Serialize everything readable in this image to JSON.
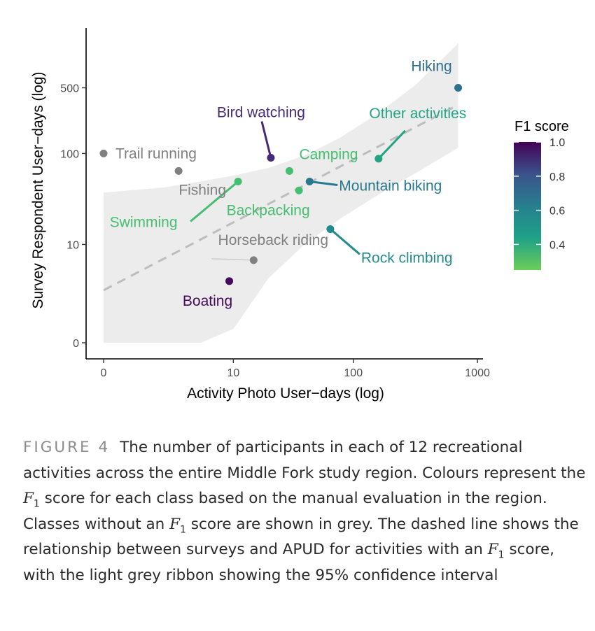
{
  "chart_data": {
    "type": "scatter",
    "title": "",
    "xlabel": "Activity Photo User−days (log)",
    "ylabel": "Survey Respondent User−days (log)",
    "x_scale": "log1p",
    "y_scale": "log1p",
    "x_ticks": [
      0,
      10,
      100,
      1000
    ],
    "x_tick_labels": [
      "0",
      "10",
      "100",
      "1000"
    ],
    "y_ticks": [
      0,
      10,
      100,
      500
    ],
    "y_tick_labels": [
      "0",
      "10",
      "100",
      "500"
    ],
    "xlim": [
      -0.1,
      1150
    ],
    "ylim": [
      -0.1,
      2200
    ],
    "grid": false,
    "color_legend": {
      "title": "F1 score",
      "ticks": [
        1.0,
        0.8,
        0.6,
        0.4
      ],
      "tick_labels": [
        "1.0",
        "0.8",
        "0.6",
        "0.4"
      ],
      "range": [
        0.25,
        1.0
      ],
      "position": "right"
    },
    "unscored_color": "#808080",
    "points": [
      {
        "label": "Hiking",
        "x": 700,
        "y": 500,
        "f1": 0.63
      },
      {
        "label": "Bird watching",
        "x": 21,
        "y": 90,
        "f1": 0.88
      },
      {
        "label": "Other activities",
        "x": 160,
        "y": 88,
        "f1": 0.42
      },
      {
        "label": "Trail running",
        "x": 0,
        "y": 100,
        "f1": null
      },
      {
        "label": "Camping",
        "x": 30,
        "y": 65,
        "f1": 0.3
      },
      {
        "label": "Fishing",
        "x": 3,
        "y": 65,
        "f1": null
      },
      {
        "label": "Swimming",
        "x": 11,
        "y": 50,
        "f1": 0.3
      },
      {
        "label": "Mountain biking",
        "x": 44,
        "y": 50,
        "f1": 0.6
      },
      {
        "label": "Backpacking",
        "x": 36,
        "y": 40,
        "f1": 0.3
      },
      {
        "label": "Rock climbing",
        "x": 65,
        "y": 15,
        "f1": 0.52
      },
      {
        "label": "Horseback riding",
        "x": 15,
        "y": 6.5,
        "f1": null
      },
      {
        "label": "Boating",
        "x": 9.2,
        "y": 3.5,
        "f1": 0.98
      }
    ],
    "trend": {
      "style": "dashed",
      "x": [
        0,
        700
      ],
      "y": [
        2.6,
        330
      ]
    },
    "ci_ribbon": {
      "x": [
        0,
        2,
        5,
        10,
        20,
        40,
        80,
        160,
        320,
        700
      ],
      "lower": [
        0,
        0,
        0,
        0.4,
        3.8,
        10,
        20,
        36,
        62,
        115
      ],
      "upper": [
        38,
        43,
        50,
        58,
        70,
        95,
        150,
        270,
        540,
        1480
      ]
    }
  },
  "caption": {
    "label": "FIGURE 4",
    "t1": "The number of participants in each of 12 recreational activities across the entire Middle Fork study region. Colours represent the ",
    "f": "F",
    "sub": "1",
    "t2": " score for each class based on the manual evaluation in the region. Classes without an ",
    "t3": " score are shown in grey. The dashed line shows the relationship between surveys and APUD for activities with an ",
    "t4": " score, with the light grey ribbon showing the 95% confidence interval"
  }
}
